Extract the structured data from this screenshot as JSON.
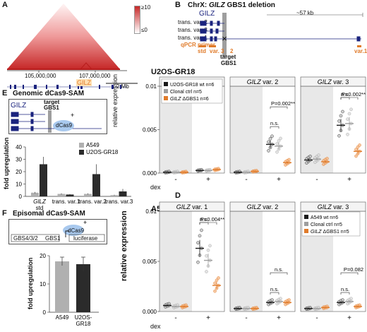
{
  "panels": {
    "A": {
      "letter": "A",
      "colorbar_max": "≥10",
      "colorbar_min": "≤0",
      "coord_left": "105,000,000",
      "coord_right": "107,000,000",
      "gene": "GILZ",
      "scale": "2 Mb"
    },
    "B": {
      "letter": "B",
      "title_prefix": "ChrX: ",
      "title_gene": "GILZ",
      "title_suffix": " GBS1 deletion",
      "span": "~57 kb",
      "gene": "GILZ",
      "transcripts": [
        "trans. var. 2",
        "trans. var. 3",
        "trans. var. 1"
      ],
      "primer_label": "qPCR primer",
      "primer_std": "std",
      "primer_var": "var. 3",
      "primer_2": "2",
      "primer_var1": "var.1",
      "target": "target",
      "target_name": "GBS1"
    },
    "C": {
      "letter": "C",
      "cell": "U2OS-GR18"
    },
    "D": {
      "letter": "D",
      "cell": "A549"
    },
    "E": {
      "letter": "E",
      "title": "Genomic dCas9-SAM",
      "gene": "GILZ",
      "target": "target",
      "target_name": "GBS1",
      "dcas9": "dCas9",
      "ylabel": "fold upregulation",
      "legend": [
        "A549",
        "U2OS-GR18"
      ]
    },
    "F": {
      "letter": "F",
      "title": "Episomal dCas9-SAM",
      "dcas9": "dCas9",
      "construct": [
        "GBS4/3/2",
        "GBS1",
        "luciferase"
      ],
      "ylabel": "fold upregulation"
    },
    "shared": {
      "ylabel_expr": "relative expression",
      "dex": "dex",
      "minus": "-",
      "plus": "+",
      "ns": "n.s."
    }
  },
  "chart_data": [
    {
      "panel": "C",
      "type": "scatter",
      "ylabel": "relative expression",
      "legend": [
        "U2OS-GR18 wt n=6",
        "Clonal ctrl n=5",
        "GILZ ΔGBS1 n=6"
      ],
      "subplots": [
        {
          "title_gene": "GILZ",
          "title_var": " var. 1",
          "ylim": [
            0,
            0.01
          ],
          "yticks": [
            "0.000",
            "0.005",
            "0.01"
          ],
          "means": {
            "minus": [
              0.0001,
              0.0001,
              0.0001
            ],
            "plus": [
              0.0003,
              0.0003,
              0.0004
            ]
          },
          "sig": []
        },
        {
          "title_gene": "GILZ",
          "title_var": " var. 2",
          "ylim": [
            0,
            0.01
          ],
          "yticks": [],
          "means": {
            "minus": [
              0.0001,
              0.0001,
              0.0002
            ],
            "plus": [
              0.0033,
              0.0031,
              0.0012
            ]
          },
          "sig": [
            {
              "label": "P=0.002**",
              "from": 0,
              "to": 2
            },
            {
              "label": "n.s.",
              "from": 0,
              "to": 1
            }
          ]
        },
        {
          "title_gene": "GILZ",
          "title_var": " var. 3",
          "ylim": [
            0,
            0.01
          ],
          "yticks": [],
          "means": {
            "minus": [
              0.0015,
              0.0016,
              0.0013
            ],
            "plus": [
              0.0055,
              0.0057,
              0.0025
            ]
          },
          "sig": [
            {
              "label": "P=0.002**",
              "from": 0,
              "to": 2
            },
            {
              "label": "n.s.",
              "from": 0,
              "to": 1
            }
          ]
        }
      ]
    },
    {
      "panel": "D",
      "type": "scatter",
      "ylabel": "relative expression",
      "legend": [
        "A549 wt n=6",
        "Clonal ctrl n=5",
        "GILZ ΔGBS1 n=5"
      ],
      "subplots": [
        {
          "title_gene": "GILZ",
          "title_var": " var. 1",
          "ylim": [
            0,
            0.01
          ],
          "yticks": [
            "0.000",
            "0.005",
            "0.01"
          ],
          "means": {
            "minus": [
              0.0006,
              0.0005,
              0.0005
            ],
            "plus": [
              0.0063,
              0.0051,
              0.0026
            ]
          },
          "sig": [
            {
              "label": "P=0.004**",
              "from": 0,
              "to": 2
            },
            {
              "label": "n.s.",
              "from": 0,
              "to": 1
            }
          ]
        },
        {
          "title_gene": "GILZ",
          "title_var": " var. 2",
          "ylim": [
            0,
            0.01
          ],
          "yticks": [],
          "means": {
            "minus": [
              0.0003,
              0.0003,
              0.0003
            ],
            "plus": [
              0.0009,
              0.001,
              0.0009
            ]
          },
          "sig": [
            {
              "label": "n.s.",
              "from": 0,
              "to": 2
            },
            {
              "label": "n.s.",
              "from": 0,
              "to": 1
            }
          ]
        },
        {
          "title_gene": "GILZ",
          "title_var": " var. 3",
          "ylim": [
            0,
            0.01
          ],
          "yticks": [],
          "means": {
            "minus": [
              0.0003,
              0.0003,
              0.0004
            ],
            "plus": [
              0.0009,
              0.001,
              0.0005
            ]
          },
          "sig": [
            {
              "label": "P=0.082",
              "from": 0,
              "to": 2
            },
            {
              "label": "n.s.",
              "from": 0,
              "to": 1
            }
          ]
        }
      ]
    },
    {
      "panel": "E",
      "type": "bar",
      "categories": [
        "GILZ std",
        "trans. var.1",
        "trans. var.2",
        "trans. var.3"
      ],
      "series": [
        {
          "name": "A549",
          "values": [
            3,
            2,
            2,
            1
          ],
          "err": [
            0.6,
            0.4,
            0.4,
            0.3
          ]
        },
        {
          "name": "U2OS-GR18",
          "values": [
            26,
            1.5,
            18,
            4
          ],
          "err": [
            6,
            0.4,
            8,
            2
          ]
        }
      ],
      "ylim": [
        0,
        40
      ],
      "yticks": [
        0,
        10,
        20,
        30,
        40
      ]
    },
    {
      "panel": "F",
      "type": "bar",
      "categories": [
        "A549",
        "U2OS-GR18"
      ],
      "values": [
        18,
        17
      ],
      "err": [
        1.5,
        2.5
      ],
      "ylim": [
        0,
        20
      ],
      "yticks": [
        0,
        10,
        20
      ]
    }
  ],
  "colors": {
    "wt": "#1a1a1a",
    "ctrl": "#9e9e9e",
    "dgbs": "#e07b2a",
    "gene": "#1a237e",
    "bar_light": "#b0b0b0",
    "bar_dark": "#2b2b2b",
    "shade": "#e8e8e8",
    "heat": "#d32f2f"
  }
}
